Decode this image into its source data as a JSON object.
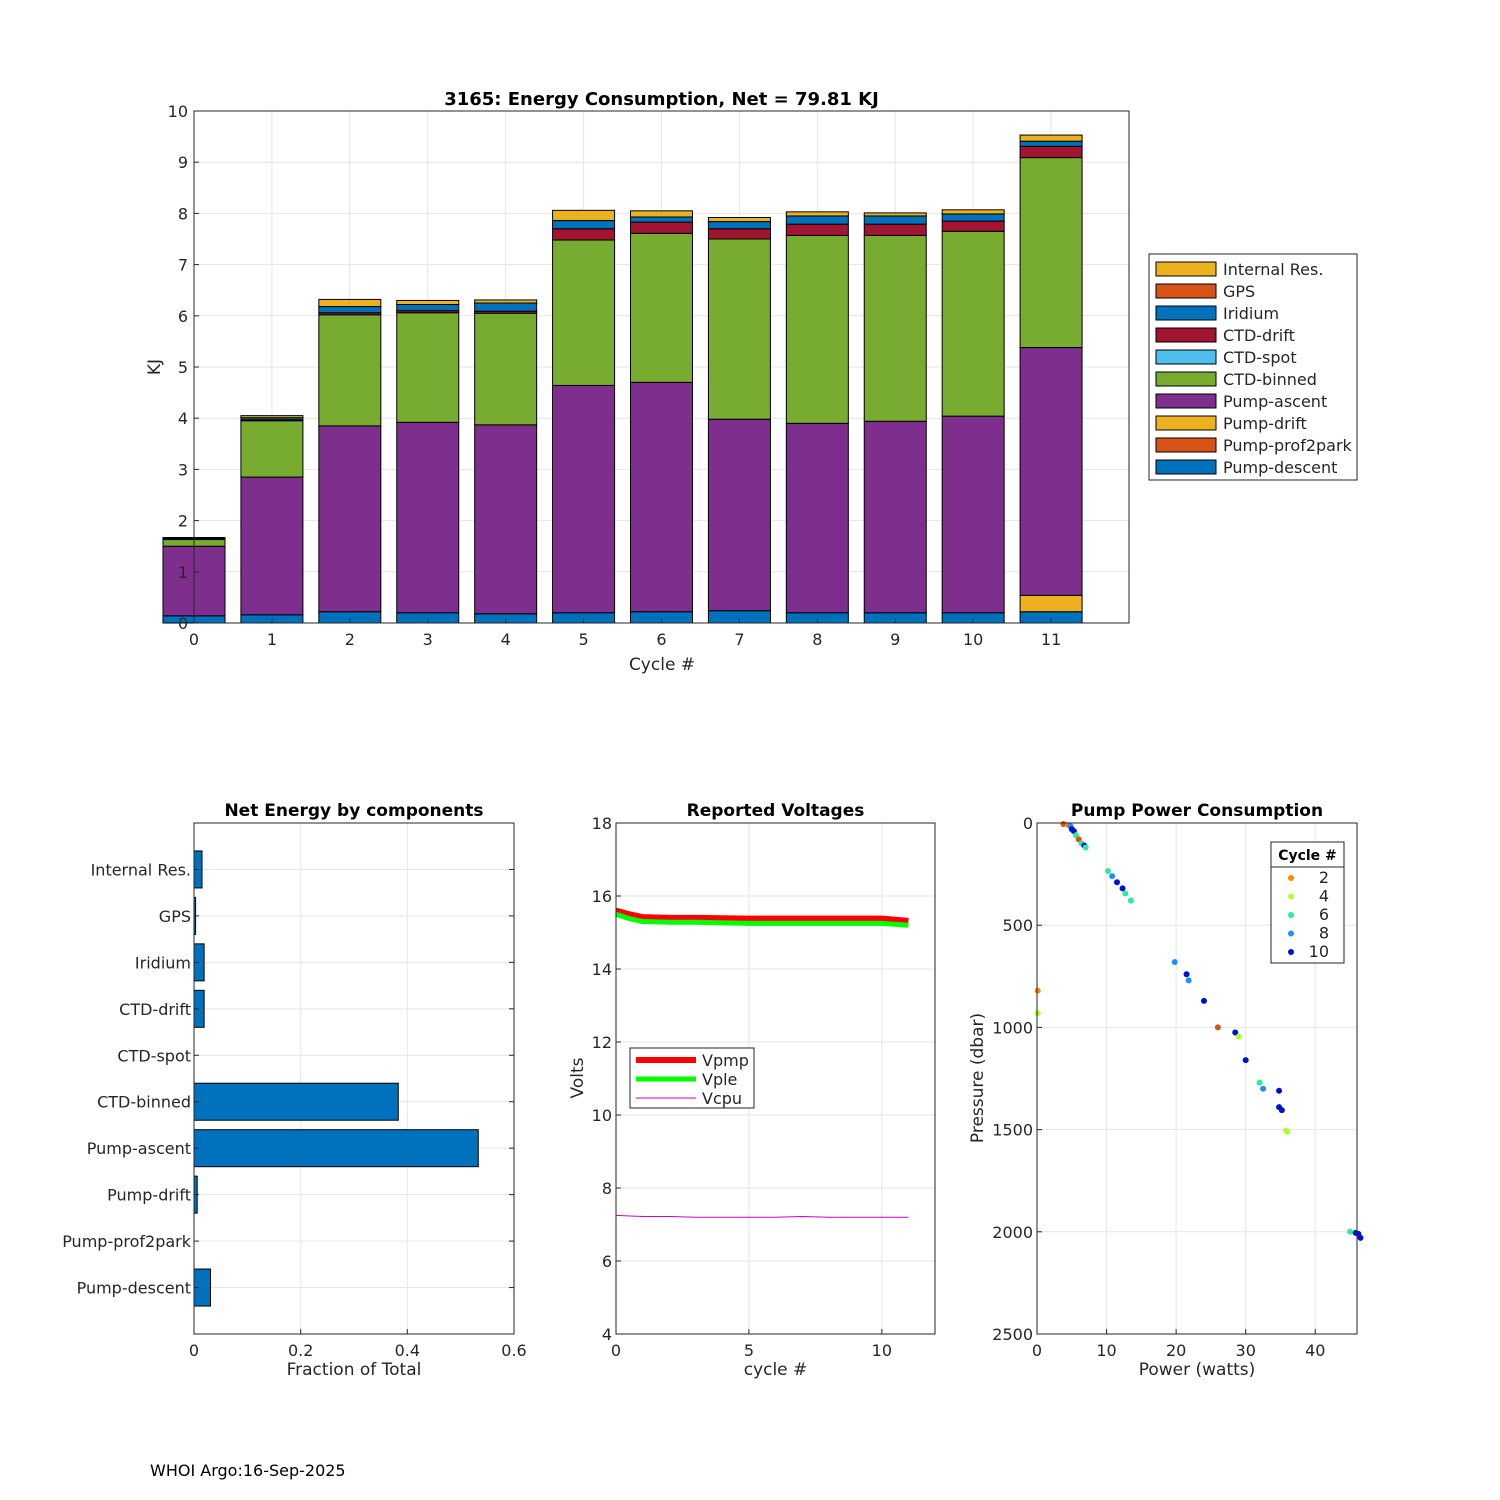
{
  "footer": "WHOI Argo:16-Sep-2025",
  "chart_data": [
    {
      "type": "bar",
      "stacked": true,
      "title": "3165: Energy Consumption,  Net =  79.81 KJ",
      "xlabel": "Cycle #",
      "ylabel": "KJ",
      "ylim": [
        0,
        10
      ],
      "xlim": [
        0,
        12
      ],
      "xticks": [
        "0",
        "1",
        "2",
        "3",
        "4",
        "5",
        "6",
        "7",
        "8",
        "9",
        "10",
        "11"
      ],
      "yticks": [
        "0",
        "1",
        "2",
        "3",
        "4",
        "5",
        "6",
        "7",
        "8",
        "9",
        "10"
      ],
      "grid": true,
      "legend_position": "right",
      "categories": [
        0,
        1,
        2,
        3,
        4,
        5,
        6,
        7,
        8,
        9,
        10,
        11
      ],
      "series": [
        {
          "name": "Pump-descent",
          "color": "#0072BD",
          "values": [
            0.14,
            0.16,
            0.22,
            0.2,
            0.18,
            0.2,
            0.22,
            0.24,
            0.2,
            0.2,
            0.2,
            0.22
          ]
        },
        {
          "name": "Pump-prof2park",
          "color": "#D95319",
          "values": [
            0,
            0,
            0,
            0,
            0,
            0,
            0,
            0,
            0,
            0,
            0,
            0
          ]
        },
        {
          "name": "Pump-drift",
          "color": "#EDB120",
          "values": [
            0,
            0,
            0,
            0,
            0,
            0,
            0,
            0,
            0,
            0,
            0,
            0.32
          ]
        },
        {
          "name": "Pump-ascent",
          "color": "#7E2F8E",
          "values": [
            1.36,
            2.69,
            3.63,
            3.72,
            3.69,
            4.44,
            4.48,
            3.74,
            3.7,
            3.74,
            3.84,
            4.84
          ]
        },
        {
          "name": "CTD-binned",
          "color": "#77AC30",
          "values": [
            0.13,
            1.1,
            2.17,
            2.14,
            2.18,
            2.84,
            2.91,
            3.52,
            3.67,
            3.63,
            3.61,
            3.71
          ]
        },
        {
          "name": "CTD-spot",
          "color": "#4DBEEE",
          "values": [
            0,
            0,
            0,
            0,
            0,
            0,
            0,
            0,
            0,
            0,
            0,
            0
          ]
        },
        {
          "name": "CTD-drift",
          "color": "#A2142F",
          "values": [
            0,
            0.02,
            0.04,
            0.04,
            0.04,
            0.22,
            0.22,
            0.2,
            0.22,
            0.22,
            0.2,
            0.22
          ]
        },
        {
          "name": "Iridium",
          "color": "#0072BD",
          "values": [
            0.02,
            0.04,
            0.12,
            0.12,
            0.16,
            0.16,
            0.1,
            0.14,
            0.16,
            0.16,
            0.14,
            0.1
          ]
        },
        {
          "name": "GPS",
          "color": "#D95319",
          "values": [
            0,
            0,
            0,
            0,
            0,
            0,
            0,
            0,
            0,
            0,
            0,
            0
          ]
        },
        {
          "name": "Internal Res.",
          "color": "#EDB120",
          "values": [
            0.02,
            0.04,
            0.14,
            0.08,
            0.06,
            0.2,
            0.12,
            0.08,
            0.08,
            0.06,
            0.08,
            0.12
          ]
        }
      ]
    },
    {
      "type": "bar",
      "orientation": "horizontal",
      "title": "Net Energy by components",
      "xlabel": "Fraction of Total",
      "xlim": [
        0,
        0.6
      ],
      "xticks": [
        "0",
        "0.2",
        "0.4",
        "0.6"
      ],
      "grid": true,
      "color": "#0072BD",
      "categories": [
        "Internal Res.",
        "GPS",
        "Iridium",
        "CTD-drift",
        "CTD-spot",
        "CTD-binned",
        "Pump-ascent",
        "Pump-drift",
        "Pump-prof2park",
        "Pump-descent"
      ],
      "values": [
        0.015,
        0.003,
        0.019,
        0.019,
        0,
        0.383,
        0.533,
        0.006,
        0,
        0.031
      ]
    },
    {
      "type": "line",
      "title": "Reported Voltages",
      "xlabel": "cycle #",
      "ylabel": "Volts",
      "xlim": [
        0,
        12
      ],
      "ylim": [
        4,
        18
      ],
      "xticks": [
        "0",
        "5",
        "10"
      ],
      "yticks": [
        "4",
        "6",
        "8",
        "10",
        "12",
        "14",
        "16",
        "18"
      ],
      "grid": true,
      "legend_position": "left-middle",
      "series": [
        {
          "name": "Vpmp",
          "color": "#FF0000",
          "width": 6,
          "x": [
            0,
            0.5,
            1,
            2,
            3,
            5,
            7,
            10,
            11
          ],
          "y": [
            15.6,
            15.5,
            15.42,
            15.4,
            15.4,
            15.38,
            15.38,
            15.38,
            15.32
          ]
        },
        {
          "name": "Vple",
          "color": "#00FF00",
          "width": 5,
          "x": [
            0,
            0.5,
            1,
            2,
            3,
            5,
            7,
            10,
            11
          ],
          "y": [
            15.5,
            15.38,
            15.3,
            15.28,
            15.28,
            15.25,
            15.25,
            15.25,
            15.2
          ]
        },
        {
          "name": "Vcpu",
          "color": "#CC00CC",
          "width": 1,
          "x": [
            0,
            1,
            2,
            3,
            4,
            5,
            6,
            7,
            8,
            9,
            10,
            11
          ],
          "y": [
            7.25,
            7.22,
            7.22,
            7.2,
            7.2,
            7.2,
            7.2,
            7.22,
            7.2,
            7.2,
            7.2,
            7.2
          ]
        }
      ]
    },
    {
      "type": "scatter",
      "title": "Pump Power Consumption",
      "xlabel": "Power (watts)",
      "ylabel": "Pressure (dbar)",
      "xlim": [
        0,
        46
      ],
      "ylim": [
        2500,
        0
      ],
      "xticks": [
        "0",
        "10",
        "20",
        "30",
        "40"
      ],
      "yticks": [
        "0",
        "500",
        "1000",
        "1500",
        "2000",
        "2500"
      ],
      "grid": true,
      "legend_title": "Cycle #",
      "legend": [
        {
          "label": "2",
          "color": "#FF8C00"
        },
        {
          "label": "4",
          "color": "#ADFF2F"
        },
        {
          "label": "6",
          "color": "#2EEB9A"
        },
        {
          "label": "8",
          "color": "#1E90FF"
        },
        {
          "label": "10",
          "color": "#0010D0"
        }
      ],
      "points": [
        {
          "x": 3.8,
          "y": 5,
          "c": "#D95319"
        },
        {
          "x": 4.5,
          "y": 10,
          "c": "#FF8C00"
        },
        {
          "x": 4.8,
          "y": 15,
          "c": "#1E90FF"
        },
        {
          "x": 5.0,
          "y": 30,
          "c": "#0010D0"
        },
        {
          "x": 5.3,
          "y": 40,
          "c": "#0010D0"
        },
        {
          "x": 5.6,
          "y": 60,
          "c": "#2EEB9A"
        },
        {
          "x": 6.0,
          "y": 80,
          "c": "#D95319"
        },
        {
          "x": 6.4,
          "y": 100,
          "c": "#2EEB9A"
        },
        {
          "x": 6.8,
          "y": 110,
          "c": "#0010D0"
        },
        {
          "x": 7.0,
          "y": 120,
          "c": "#2EEB9A"
        },
        {
          "x": 10.2,
          "y": 235,
          "c": "#2EEB9A"
        },
        {
          "x": 10.8,
          "y": 260,
          "c": "#1E90FF"
        },
        {
          "x": 11.5,
          "y": 290,
          "c": "#0010D0"
        },
        {
          "x": 12.3,
          "y": 320,
          "c": "#0010D0"
        },
        {
          "x": 12.7,
          "y": 345,
          "c": "#2EEB9A"
        },
        {
          "x": 13.5,
          "y": 380,
          "c": "#2EEB9A"
        },
        {
          "x": 0.1,
          "y": 820,
          "c": "#FF8C00"
        },
        {
          "x": 0.1,
          "y": 930,
          "c": "#ADFF2F"
        },
        {
          "x": 19.8,
          "y": 680,
          "c": "#1E90FF"
        },
        {
          "x": 21.5,
          "y": 740,
          "c": "#0010D0"
        },
        {
          "x": 21.8,
          "y": 770,
          "c": "#1E90FF"
        },
        {
          "x": 24.0,
          "y": 870,
          "c": "#0010D0"
        },
        {
          "x": 26.0,
          "y": 1000,
          "c": "#D95319"
        },
        {
          "x": 28.5,
          "y": 1025,
          "c": "#0010D0"
        },
        {
          "x": 29.0,
          "y": 1045,
          "c": "#ADFF2F"
        },
        {
          "x": 30.0,
          "y": 1160,
          "c": "#0010D0"
        },
        {
          "x": 32.0,
          "y": 1270,
          "c": "#2EEB9A"
        },
        {
          "x": 32.5,
          "y": 1300,
          "c": "#1E90FF"
        },
        {
          "x": 34.8,
          "y": 1310,
          "c": "#0010D0"
        },
        {
          "x": 34.8,
          "y": 1390,
          "c": "#0010D0"
        },
        {
          "x": 35.2,
          "y": 1405,
          "c": "#0010D0"
        },
        {
          "x": 35.8,
          "y": 1505,
          "c": "#ADFF2F"
        },
        {
          "x": 36.0,
          "y": 1510,
          "c": "#ADFF2F"
        },
        {
          "x": 45.0,
          "y": 2000,
          "c": "#2EEB9A"
        },
        {
          "x": 45.8,
          "y": 2005,
          "c": "#0010D0"
        },
        {
          "x": 46.2,
          "y": 2010,
          "c": "#0010D0"
        },
        {
          "x": 46.5,
          "y": 2030,
          "c": "#0010D0"
        }
      ]
    }
  ]
}
